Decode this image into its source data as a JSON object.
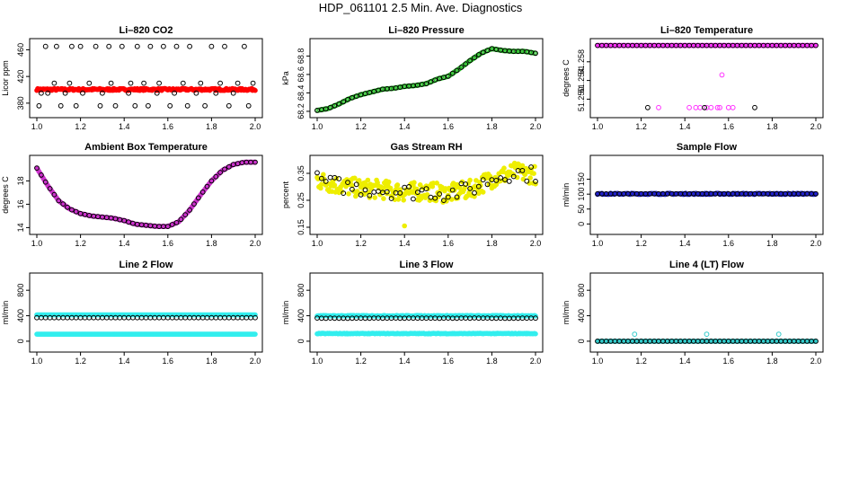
{
  "title": "HDP_061101  2.5 Min. Ave. Diagnostics",
  "chart_data": [
    {
      "type": "scatter",
      "title": "Li–820 CO2",
      "ylabel": "Licor ppm",
      "xlim": [
        1.0,
        2.0
      ],
      "ylim": [
        365,
        470
      ],
      "xticks": [
        "1.0",
        "1.2",
        "1.4",
        "1.6",
        "1.8",
        "2.0"
      ],
      "xtick_values": [
        1.0,
        1.2,
        1.4,
        1.6,
        1.8,
        2.0
      ],
      "yticks": [
        "380",
        "420",
        "460"
      ],
      "ytick_values": [
        380,
        420,
        460
      ],
      "series": [
        {
          "color": "#ff0000",
          "marker": "filled",
          "kind": "band",
          "x0": 1.0,
          "x1": 2.0,
          "y0": 399,
          "y1": 402,
          "step": 0.004
        },
        {
          "color": "#000000",
          "marker": "open",
          "x": [
            1.01,
            1.02,
            1.04,
            1.05,
            1.08,
            1.09,
            1.11,
            1.13,
            1.15,
            1.16,
            1.18,
            1.2,
            1.21,
            1.24,
            1.27,
            1.29,
            1.3,
            1.33,
            1.34,
            1.36,
            1.39,
            1.42,
            1.43,
            1.45,
            1.46,
            1.49,
            1.51,
            1.52,
            1.55,
            1.56,
            1.58,
            1.61,
            1.63,
            1.64,
            1.67,
            1.69,
            1.7,
            1.73,
            1.75,
            1.77,
            1.8,
            1.82,
            1.84,
            1.86,
            1.88,
            1.9,
            1.92,
            1.95,
            1.97,
            1.99
          ],
          "y": [
            376,
            395,
            465,
            395,
            410,
            465,
            376,
            395,
            410,
            465,
            376,
            465,
            395,
            410,
            465,
            376,
            395,
            465,
            410,
            376,
            465,
            395,
            410,
            376,
            465,
            410,
            376,
            465,
            395,
            410,
            465,
            376,
            395,
            465,
            410,
            376,
            465,
            395,
            410,
            376,
            465,
            395,
            410,
            465,
            376,
            395,
            410,
            465,
            376,
            410
          ]
        }
      ]
    },
    {
      "type": "scatter",
      "title": "Li–820 Pressure",
      "ylabel": "kPa",
      "xlim": [
        1.0,
        2.0
      ],
      "ylim": [
        68.18,
        68.94
      ],
      "xticks": [
        "1.0",
        "1.2",
        "1.4",
        "1.6",
        "1.8",
        "2.0"
      ],
      "xtick_values": [
        1.0,
        1.2,
        1.4,
        1.6,
        1.8,
        2.0
      ],
      "yticks": [
        "68.2",
        "68.4",
        "68.6",
        "68.8"
      ],
      "ytick_values": [
        68.2,
        68.4,
        68.6,
        68.8
      ],
      "series": [
        {
          "color": "#22bb22",
          "marker": "open",
          "kind": "curve",
          "x": [
            1.0,
            1.05,
            1.1,
            1.15,
            1.2,
            1.25,
            1.3,
            1.35,
            1.4,
            1.45,
            1.5,
            1.55,
            1.6,
            1.65,
            1.7,
            1.75,
            1.8,
            1.85,
            1.9,
            1.95,
            2.0
          ],
          "y": [
            68.21,
            68.23,
            68.28,
            68.34,
            68.38,
            68.41,
            68.44,
            68.45,
            68.47,
            68.48,
            68.5,
            68.55,
            68.58,
            68.66,
            68.75,
            68.83,
            68.88,
            68.86,
            68.85,
            68.85,
            68.83
          ],
          "step": 0.006
        },
        {
          "color": "#000000",
          "marker": "open",
          "kind": "curve",
          "x": [
            1.0,
            1.05,
            1.1,
            1.15,
            1.2,
            1.25,
            1.3,
            1.35,
            1.4,
            1.45,
            1.5,
            1.55,
            1.6,
            1.65,
            1.7,
            1.75,
            1.8,
            1.85,
            1.9,
            1.95,
            2.0
          ],
          "y": [
            68.21,
            68.23,
            68.28,
            68.34,
            68.38,
            68.41,
            68.44,
            68.45,
            68.47,
            68.48,
            68.5,
            68.55,
            68.58,
            68.66,
            68.75,
            68.83,
            68.88,
            68.86,
            68.85,
            68.85,
            68.83
          ],
          "step": 0.02
        }
      ]
    },
    {
      "type": "scatter",
      "title": "Li–820 Temperature",
      "ylabel": "degrees C",
      "xlim": [
        1.0,
        2.0
      ],
      "ylim": [
        51.247,
        51.262
      ],
      "xticks": [
        "1.0",
        "1.2",
        "1.4",
        "1.6",
        "1.8",
        "2.0"
      ],
      "xtick_values": [
        1.0,
        1.2,
        1.4,
        1.6,
        1.8,
        2.0
      ],
      "yticks": [
        "51.250",
        "51.254",
        "51.258"
      ],
      "ytick_values": [
        51.25,
        51.254,
        51.258
      ],
      "series": [
        {
          "color": "#ff33ff",
          "marker": "filled",
          "kind": "band",
          "x0": 1.0,
          "x1": 2.0,
          "y0": 51.2615,
          "y1": 51.2615,
          "step": 0.005
        },
        {
          "color": "#000000",
          "marker": "open",
          "kind": "band",
          "x0": 1.0,
          "x1": 2.0,
          "y0": 51.2615,
          "y1": 51.2615,
          "step": 0.02
        },
        {
          "color": "#ff33ff",
          "marker": "open",
          "x": [
            1.28,
            1.42,
            1.45,
            1.47,
            1.5,
            1.52,
            1.55,
            1.56,
            1.57,
            1.6,
            1.62
          ],
          "y": [
            51.2482,
            51.2482,
            51.2482,
            51.2482,
            51.2482,
            51.2482,
            51.2482,
            51.2482,
            51.2552,
            51.2482,
            51.2482
          ]
        },
        {
          "color": "#000000",
          "marker": "open",
          "x": [
            1.23,
            1.49,
            1.72
          ],
          "y": [
            51.2482,
            51.2482,
            51.2482
          ]
        }
      ]
    },
    {
      "type": "scatter",
      "title": "Ambient Box Temperature",
      "ylabel": "degrees C",
      "xlim": [
        1.0,
        2.0
      ],
      "ylim": [
        13.8,
        19.8
      ],
      "xticks": [
        "1.0",
        "1.2",
        "1.4",
        "1.6",
        "1.8",
        "2.0"
      ],
      "xtick_values": [
        1.0,
        1.2,
        1.4,
        1.6,
        1.8,
        2.0
      ],
      "yticks": [
        "14",
        "16",
        "18"
      ],
      "ytick_values": [
        14,
        16,
        18
      ],
      "series": [
        {
          "color": "#cc33cc",
          "marker": "filled",
          "kind": "curve",
          "x": [
            1.0,
            1.05,
            1.1,
            1.15,
            1.2,
            1.25,
            1.3,
            1.35,
            1.4,
            1.45,
            1.5,
            1.55,
            1.6,
            1.65,
            1.7,
            1.75,
            1.8,
            1.85,
            1.9,
            1.95,
            2.0
          ],
          "y": [
            19.1,
            17.6,
            16.3,
            15.6,
            15.2,
            15.0,
            14.9,
            14.8,
            14.6,
            14.3,
            14.2,
            14.1,
            14.1,
            14.5,
            15.5,
            16.8,
            18.0,
            18.9,
            19.4,
            19.6,
            19.6
          ],
          "step": 0.004
        },
        {
          "color": "#000000",
          "marker": "open",
          "kind": "curve",
          "x": [
            1.0,
            1.05,
            1.1,
            1.15,
            1.2,
            1.25,
            1.3,
            1.35,
            1.4,
            1.45,
            1.5,
            1.55,
            1.6,
            1.65,
            1.7,
            1.75,
            1.8,
            1.85,
            1.9,
            1.95,
            2.0
          ],
          "y": [
            19.1,
            17.6,
            16.3,
            15.6,
            15.2,
            15.0,
            14.9,
            14.8,
            14.6,
            14.3,
            14.2,
            14.1,
            14.1,
            14.5,
            15.5,
            16.8,
            18.0,
            18.9,
            19.4,
            19.6,
            19.6
          ],
          "step": 0.02
        }
      ]
    },
    {
      "type": "scatter",
      "title": "Gas Stream RH",
      "ylabel": "percent",
      "xlim": [
        1.0,
        2.0
      ],
      "ylim": [
        0.14,
        0.4
      ],
      "xticks": [
        "1.0",
        "1.2",
        "1.4",
        "1.6",
        "1.8",
        "2.0"
      ],
      "xtick_values": [
        1.0,
        1.2,
        1.4,
        1.6,
        1.8,
        2.0
      ],
      "yticks": [
        "0.15",
        "0.25",
        "0.35"
      ],
      "ytick_values": [
        0.15,
        0.25,
        0.35
      ],
      "series": [
        {
          "color": "#eeee00",
          "marker": "filled",
          "kind": "noisy",
          "x": [
            1.0,
            1.1,
            1.2,
            1.3,
            1.4,
            1.5,
            1.6,
            1.7,
            1.8,
            1.9,
            2.0
          ],
          "y": [
            0.325,
            0.305,
            0.295,
            0.29,
            0.28,
            0.285,
            0.275,
            0.29,
            0.33,
            0.355,
            0.345
          ],
          "spread": 0.035,
          "step": 0.004
        },
        {
          "color": "#000000",
          "marker": "open",
          "kind": "noisy",
          "x": [
            1.0,
            1.1,
            1.2,
            1.3,
            1.4,
            1.5,
            1.6,
            1.7,
            1.8,
            1.9,
            2.0
          ],
          "y": [
            0.325,
            0.305,
            0.295,
            0.29,
            0.28,
            0.285,
            0.275,
            0.29,
            0.33,
            0.355,
            0.345
          ],
          "spread": 0.03,
          "step": 0.02
        },
        {
          "color": "#eeee00",
          "marker": "filled",
          "x": [
            1.4
          ],
          "y": [
            0.155
          ]
        }
      ]
    },
    {
      "type": "scatter",
      "title": "Sample Flow",
      "ylabel": "ml/min",
      "xlim": [
        1.0,
        2.0
      ],
      "ylim": [
        -20,
        215
      ],
      "xticks": [
        "1.0",
        "1.2",
        "1.4",
        "1.6",
        "1.8",
        "2.0"
      ],
      "xtick_values": [
        1.0,
        1.2,
        1.4,
        1.6,
        1.8,
        2.0
      ],
      "yticks": [
        "0",
        "50",
        "100",
        "150"
      ],
      "ytick_values": [
        0,
        50,
        100,
        150
      ],
      "series": [
        {
          "color": "#2222cc",
          "marker": "filled",
          "kind": "band",
          "x0": 1.0,
          "x1": 2.0,
          "y0": 99,
          "y1": 103,
          "step": 0.004
        },
        {
          "color": "#000000",
          "marker": "open",
          "kind": "band",
          "x0": 1.0,
          "x1": 2.0,
          "y0": 101,
          "y1": 101,
          "step": 0.02
        }
      ]
    },
    {
      "type": "scatter",
      "title": "Line 2 Flow",
      "ylabel": "ml/min",
      "xlim": [
        1.0,
        2.0
      ],
      "ylim": [
        -100,
        1000
      ],
      "xticks": [
        "1.0",
        "1.2",
        "1.4",
        "1.6",
        "1.8",
        "2.0"
      ],
      "xtick_values": [
        1.0,
        1.2,
        1.4,
        1.6,
        1.8,
        2.0
      ],
      "yticks": [
        "0",
        "400",
        "800"
      ],
      "ytick_values": [
        0,
        400,
        800
      ],
      "series": [
        {
          "color": "#33eeee",
          "marker": "filled",
          "kind": "band",
          "x0": 1.0,
          "x1": 2.0,
          "y0": 110,
          "y1": 110,
          "step": 0.004
        },
        {
          "color": "#33eeee",
          "marker": "filled",
          "kind": "band",
          "x0": 1.0,
          "x1": 2.0,
          "y0": 415,
          "y1": 415,
          "step": 0.004
        },
        {
          "color": "#000000",
          "marker": "open",
          "kind": "band",
          "x0": 1.0,
          "x1": 2.0,
          "y0": 370,
          "y1": 370,
          "step": 0.02
        }
      ]
    },
    {
      "type": "scatter",
      "title": "Line 3 Flow",
      "ylabel": "ml/min",
      "xlim": [
        1.0,
        2.0
      ],
      "ylim": [
        -100,
        1000
      ],
      "xticks": [
        "1.0",
        "1.2",
        "1.4",
        "1.6",
        "1.8",
        "2.0"
      ],
      "xtick_values": [
        1.0,
        1.2,
        1.4,
        1.6,
        1.8,
        2.0
      ],
      "yticks": [
        "0",
        "400",
        "800"
      ],
      "ytick_values": [
        0,
        400,
        800
      ],
      "series": [
        {
          "color": "#33eeee",
          "marker": "filled",
          "kind": "band",
          "x0": 1.0,
          "x1": 2.0,
          "y0": 115,
          "y1": 125,
          "step": 0.004
        },
        {
          "color": "#33eeee",
          "marker": "filled",
          "kind": "band",
          "x0": 1.0,
          "x1": 2.0,
          "y0": 395,
          "y1": 405,
          "step": 0.004
        },
        {
          "color": "#000000",
          "marker": "open",
          "kind": "band",
          "x0": 1.0,
          "x1": 2.0,
          "y0": 360,
          "y1": 365,
          "step": 0.02
        }
      ]
    },
    {
      "type": "scatter",
      "title": "Line 4 (LT) Flow",
      "ylabel": "ml/min",
      "xlim": [
        1.0,
        2.0
      ],
      "ylim": [
        -100,
        1000
      ],
      "xticks": [
        "1.0",
        "1.2",
        "1.4",
        "1.6",
        "1.8",
        "2.0"
      ],
      "xtick_values": [
        1.0,
        1.2,
        1.4,
        1.6,
        1.8,
        2.0
      ],
      "yticks": [
        "0",
        "400",
        "800"
      ],
      "ytick_values": [
        0,
        400,
        800
      ],
      "series": [
        {
          "color": "#33cccc",
          "marker": "filled",
          "kind": "band",
          "x0": 1.0,
          "x1": 2.0,
          "y0": 0,
          "y1": 0,
          "step": 0.004
        },
        {
          "color": "#000000",
          "marker": "open",
          "kind": "band",
          "x0": 1.0,
          "x1": 2.0,
          "y0": 0,
          "y1": 0,
          "step": 0.02
        },
        {
          "color": "#33cccc",
          "marker": "open",
          "x": [
            1.17,
            1.5,
            1.83
          ],
          "y": [
            110,
            110,
            110
          ]
        }
      ]
    }
  ]
}
